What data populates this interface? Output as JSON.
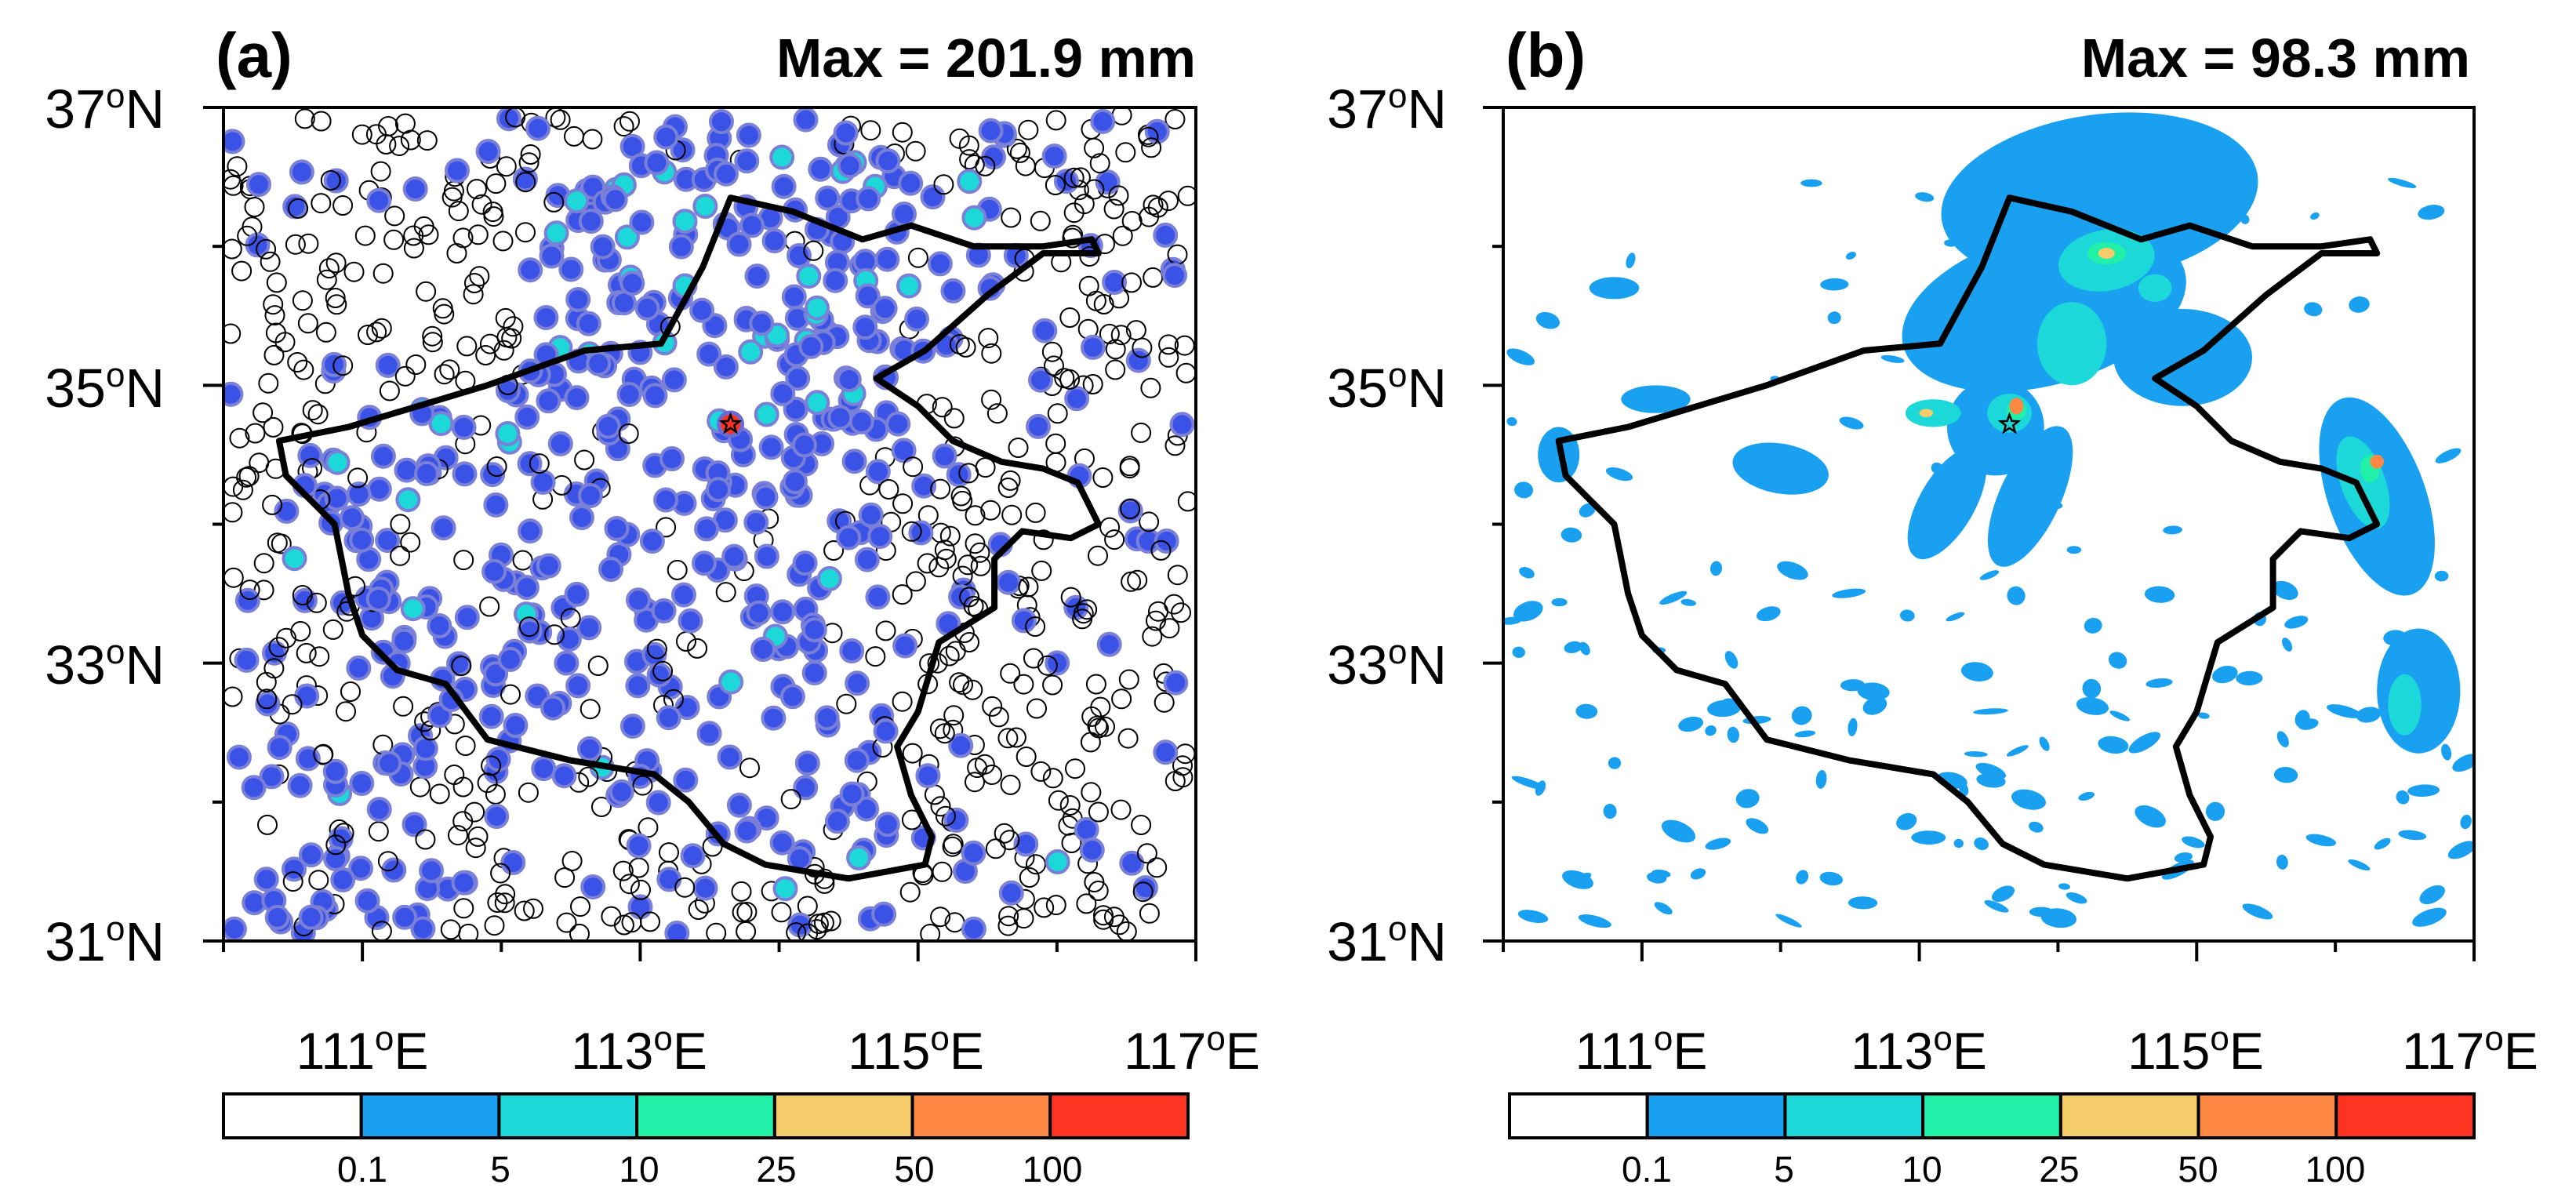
{
  "chart_data": [
    {
      "type": "scatter",
      "panel_label": "(a)",
      "max_text": "Max = 201.9 mm",
      "description_marks": "station rainfall, colored by amount; hollow circles = no rain",
      "y_ticks": [
        {
          "deg": "37",
          "unit": "o",
          "hemi": "N",
          "value": 37
        },
        {
          "deg": "35",
          "unit": "o",
          "hemi": "N",
          "value": 35
        },
        {
          "deg": "33",
          "unit": "o",
          "hemi": "N",
          "value": 33
        },
        {
          "deg": "31",
          "unit": "o",
          "hemi": "N",
          "value": 31
        }
      ],
      "x_ticks": [
        {
          "deg": "111",
          "unit": "o",
          "hemi": "E",
          "value": 111
        },
        {
          "deg": "113",
          "unit": "o",
          "hemi": "E",
          "value": 113
        },
        {
          "deg": "115",
          "unit": "o",
          "hemi": "E",
          "value": 115
        },
        {
          "deg": "117",
          "unit": "o",
          "hemi": "E",
          "value": 117
        }
      ],
      "xlim": [
        110,
        117
      ],
      "ylim": [
        31,
        37
      ],
      "marked_station": {
        "lon": 113.65,
        "lat": 34.72,
        "value_mm": 201.9
      },
      "colorbar_levels": [
        "0.1",
        "5",
        "10",
        "25",
        "50",
        "100"
      ]
    },
    {
      "type": "heatmap",
      "panel_label": "(b)",
      "max_text": "Max = 98.3 mm",
      "y_ticks": [
        {
          "deg": "37",
          "unit": "o",
          "hemi": "N",
          "value": 37
        },
        {
          "deg": "35",
          "unit": "o",
          "hemi": "N",
          "value": 35
        },
        {
          "deg": "33",
          "unit": "o",
          "hemi": "N",
          "value": 33
        },
        {
          "deg": "31",
          "unit": "o",
          "hemi": "N",
          "value": 31
        }
      ],
      "x_ticks": [
        {
          "deg": "111",
          "unit": "o",
          "hemi": "E",
          "value": 111
        },
        {
          "deg": "113",
          "unit": "o",
          "hemi": "E",
          "value": 113
        },
        {
          "deg": "115",
          "unit": "o",
          "hemi": "E",
          "value": 115
        },
        {
          "deg": "117",
          "unit": "o",
          "hemi": "E",
          "value": 117
        }
      ],
      "xlim": [
        110,
        117
      ],
      "ylim": [
        31,
        37
      ],
      "marked_station": {
        "lon": 113.65,
        "lat": 34.72
      },
      "colorbar_levels": [
        "0.1",
        "5",
        "10",
        "25",
        "50",
        "100"
      ]
    }
  ],
  "colorbar_colors": [
    "#ffffff",
    "#1aa0f0",
    "#1dd8d8",
    "#20f0a8",
    "#f4cc6a",
    "#ff8844",
    "#ff3322"
  ],
  "province_outline": [
    [
      110.4,
      34.6
    ],
    [
      110.9,
      34.7
    ],
    [
      111.4,
      34.85
    ],
    [
      111.9,
      35.0
    ],
    [
      112.6,
      35.25
    ],
    [
      113.15,
      35.3
    ],
    [
      113.45,
      35.85
    ],
    [
      113.65,
      36.35
    ],
    [
      114.1,
      36.25
    ],
    [
      114.6,
      36.05
    ],
    [
      114.95,
      36.15
    ],
    [
      115.4,
      36.0
    ],
    [
      115.9,
      36.0
    ],
    [
      116.25,
      36.05
    ],
    [
      116.3,
      35.95
    ],
    [
      115.9,
      35.95
    ],
    [
      115.5,
      35.65
    ],
    [
      115.05,
      35.25
    ],
    [
      114.7,
      35.05
    ],
    [
      115.0,
      34.85
    ],
    [
      115.25,
      34.6
    ],
    [
      115.6,
      34.45
    ],
    [
      115.9,
      34.4
    ],
    [
      116.15,
      34.3
    ],
    [
      116.3,
      34.0
    ],
    [
      116.1,
      33.9
    ],
    [
      115.75,
      33.95
    ],
    [
      115.55,
      33.75
    ],
    [
      115.55,
      33.4
    ],
    [
      115.15,
      33.15
    ],
    [
      115.0,
      32.65
    ],
    [
      114.85,
      32.4
    ],
    [
      114.95,
      32.05
    ],
    [
      115.1,
      31.75
    ],
    [
      115.05,
      31.55
    ],
    [
      114.5,
      31.45
    ],
    [
      113.9,
      31.55
    ],
    [
      113.6,
      31.7
    ],
    [
      113.35,
      32.0
    ],
    [
      113.1,
      32.2
    ],
    [
      112.5,
      32.3
    ],
    [
      111.9,
      32.45
    ],
    [
      111.6,
      32.85
    ],
    [
      111.25,
      32.95
    ],
    [
      111.0,
      33.2
    ],
    [
      110.9,
      33.5
    ],
    [
      110.8,
      34.0
    ],
    [
      110.45,
      34.35
    ],
    [
      110.4,
      34.6
    ]
  ]
}
